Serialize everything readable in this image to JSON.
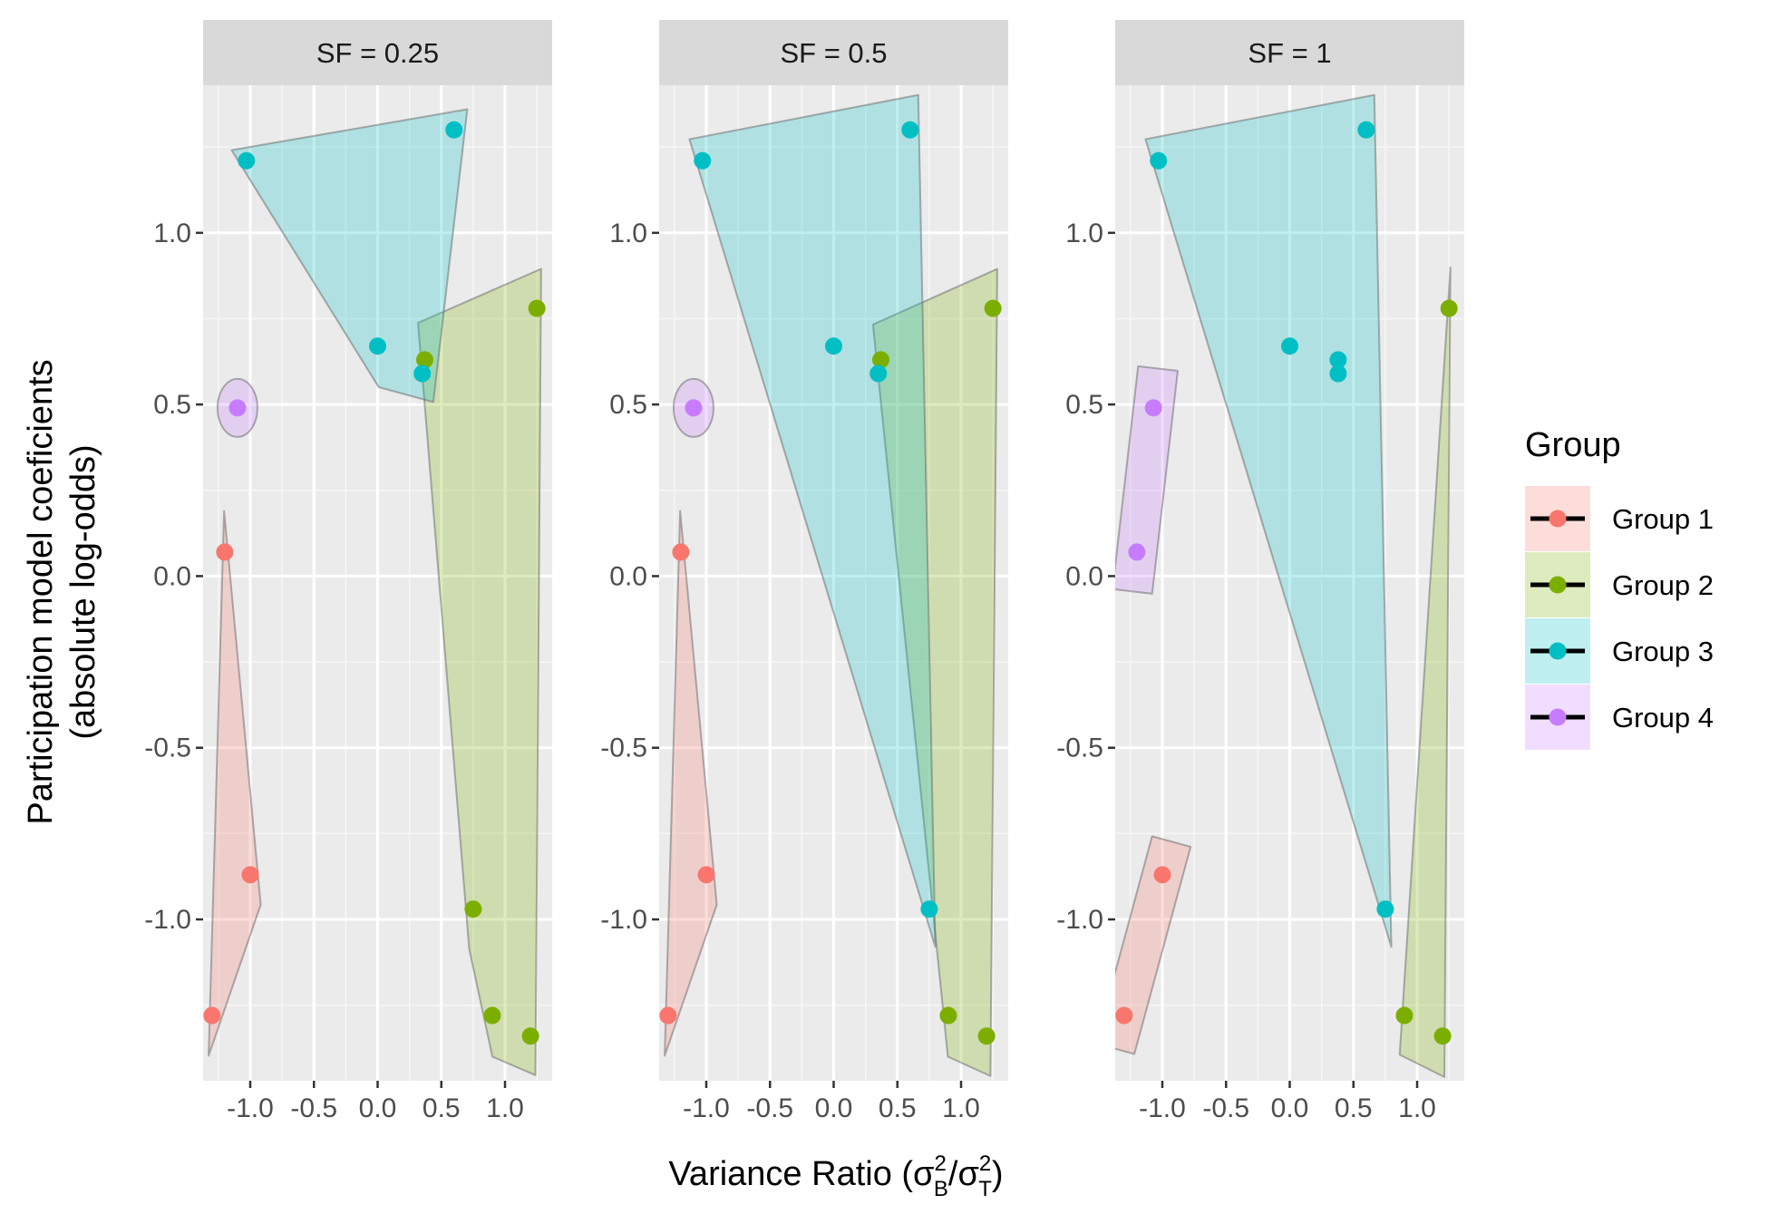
{
  "chart_data": {
    "type": "scatter",
    "xlabel": "Variance Ratio (σB²/σT²)",
    "xlabel_parts": {
      "prefix": "Variance Ratio (",
      "num": "σ",
      "num_sub": "B",
      "num_sup": "2",
      "slash": "/",
      "den": "σ",
      "den_sub": "T",
      "den_sup": "2",
      "suffix": ")"
    },
    "ylabel": [
      "Participation model coeficients",
      "(absolute log-odds)"
    ],
    "legend": {
      "title": "Group",
      "position": "right"
    },
    "x_ticks": [
      -1.0,
      -0.5,
      0.0,
      0.5,
      1.0
    ],
    "x_tick_labels": [
      "-1.0",
      "-0.5",
      "0.0",
      "0.5",
      "1.0"
    ],
    "y_ticks": [
      -1.0,
      -0.5,
      0.0,
      0.5,
      1.0
    ],
    "y_tick_labels": [
      "-1.0",
      "-0.5",
      "0.0",
      "0.5",
      "1.0"
    ],
    "xlim": [
      -1.37,
      1.37
    ],
    "ylim": [
      -1.47,
      1.43
    ],
    "grid": true,
    "colors": {
      "Group 1": "#F8766D",
      "Group 2": "#7CAE00",
      "Group 3": "#00BFC4",
      "Group 4": "#C77CFF"
    },
    "groups": [
      "Group 1",
      "Group 2",
      "Group 3",
      "Group 4"
    ],
    "panels": [
      {
        "label": "SF = 0.25",
        "series": [
          {
            "name": "Group 1",
            "points": [
              [
                -1.2,
                0.07
              ],
              [
                -1.0,
                -0.87
              ],
              [
                -1.3,
                -1.28
              ]
            ]
          },
          {
            "name": "Group 2",
            "points": [
              [
                0.37,
                0.63
              ],
              [
                1.25,
                0.78
              ],
              [
                0.75,
                -0.97
              ],
              [
                0.9,
                -1.28
              ],
              [
                1.2,
                -1.34
              ]
            ]
          },
          {
            "name": "Group 3",
            "points": [
              [
                -1.03,
                1.21
              ],
              [
                0.6,
                1.3
              ],
              [
                0.0,
                0.67
              ],
              [
                0.35,
                0.59
              ]
            ]
          },
          {
            "name": "Group 4",
            "points": [
              [
                -1.1,
                0.49
              ]
            ]
          }
        ]
      },
      {
        "label": "SF = 0.5",
        "series": [
          {
            "name": "Group 1",
            "points": [
              [
                -1.2,
                0.07
              ],
              [
                -1.0,
                -0.87
              ],
              [
                -1.3,
                -1.28
              ]
            ]
          },
          {
            "name": "Group 2",
            "points": [
              [
                0.37,
                0.63
              ],
              [
                1.25,
                0.78
              ],
              [
                0.9,
                -1.28
              ],
              [
                1.2,
                -1.34
              ]
            ]
          },
          {
            "name": "Group 3",
            "points": [
              [
                -1.03,
                1.21
              ],
              [
                0.6,
                1.3
              ],
              [
                0.0,
                0.67
              ],
              [
                0.35,
                0.59
              ],
              [
                0.75,
                -0.97
              ]
            ]
          },
          {
            "name": "Group 4",
            "points": [
              [
                -1.1,
                0.49
              ]
            ]
          }
        ]
      },
      {
        "label": "SF = 1",
        "series": [
          {
            "name": "Group 1",
            "points": [
              [
                -1.0,
                -0.87
              ],
              [
                -1.3,
                -1.28
              ]
            ]
          },
          {
            "name": "Group 2",
            "points": [
              [
                1.25,
                0.78
              ],
              [
                0.9,
                -1.28
              ],
              [
                1.2,
                -1.34
              ]
            ]
          },
          {
            "name": "Group 3",
            "points": [
              [
                -1.03,
                1.21
              ],
              [
                0.6,
                1.3
              ],
              [
                0.0,
                0.67
              ],
              [
                0.38,
                0.63
              ],
              [
                0.38,
                0.59
              ],
              [
                0.75,
                -0.97
              ]
            ]
          },
          {
            "name": "Group 4",
            "points": [
              [
                -1.07,
                0.49
              ],
              [
                -1.2,
                0.07
              ]
            ]
          }
        ]
      }
    ]
  }
}
